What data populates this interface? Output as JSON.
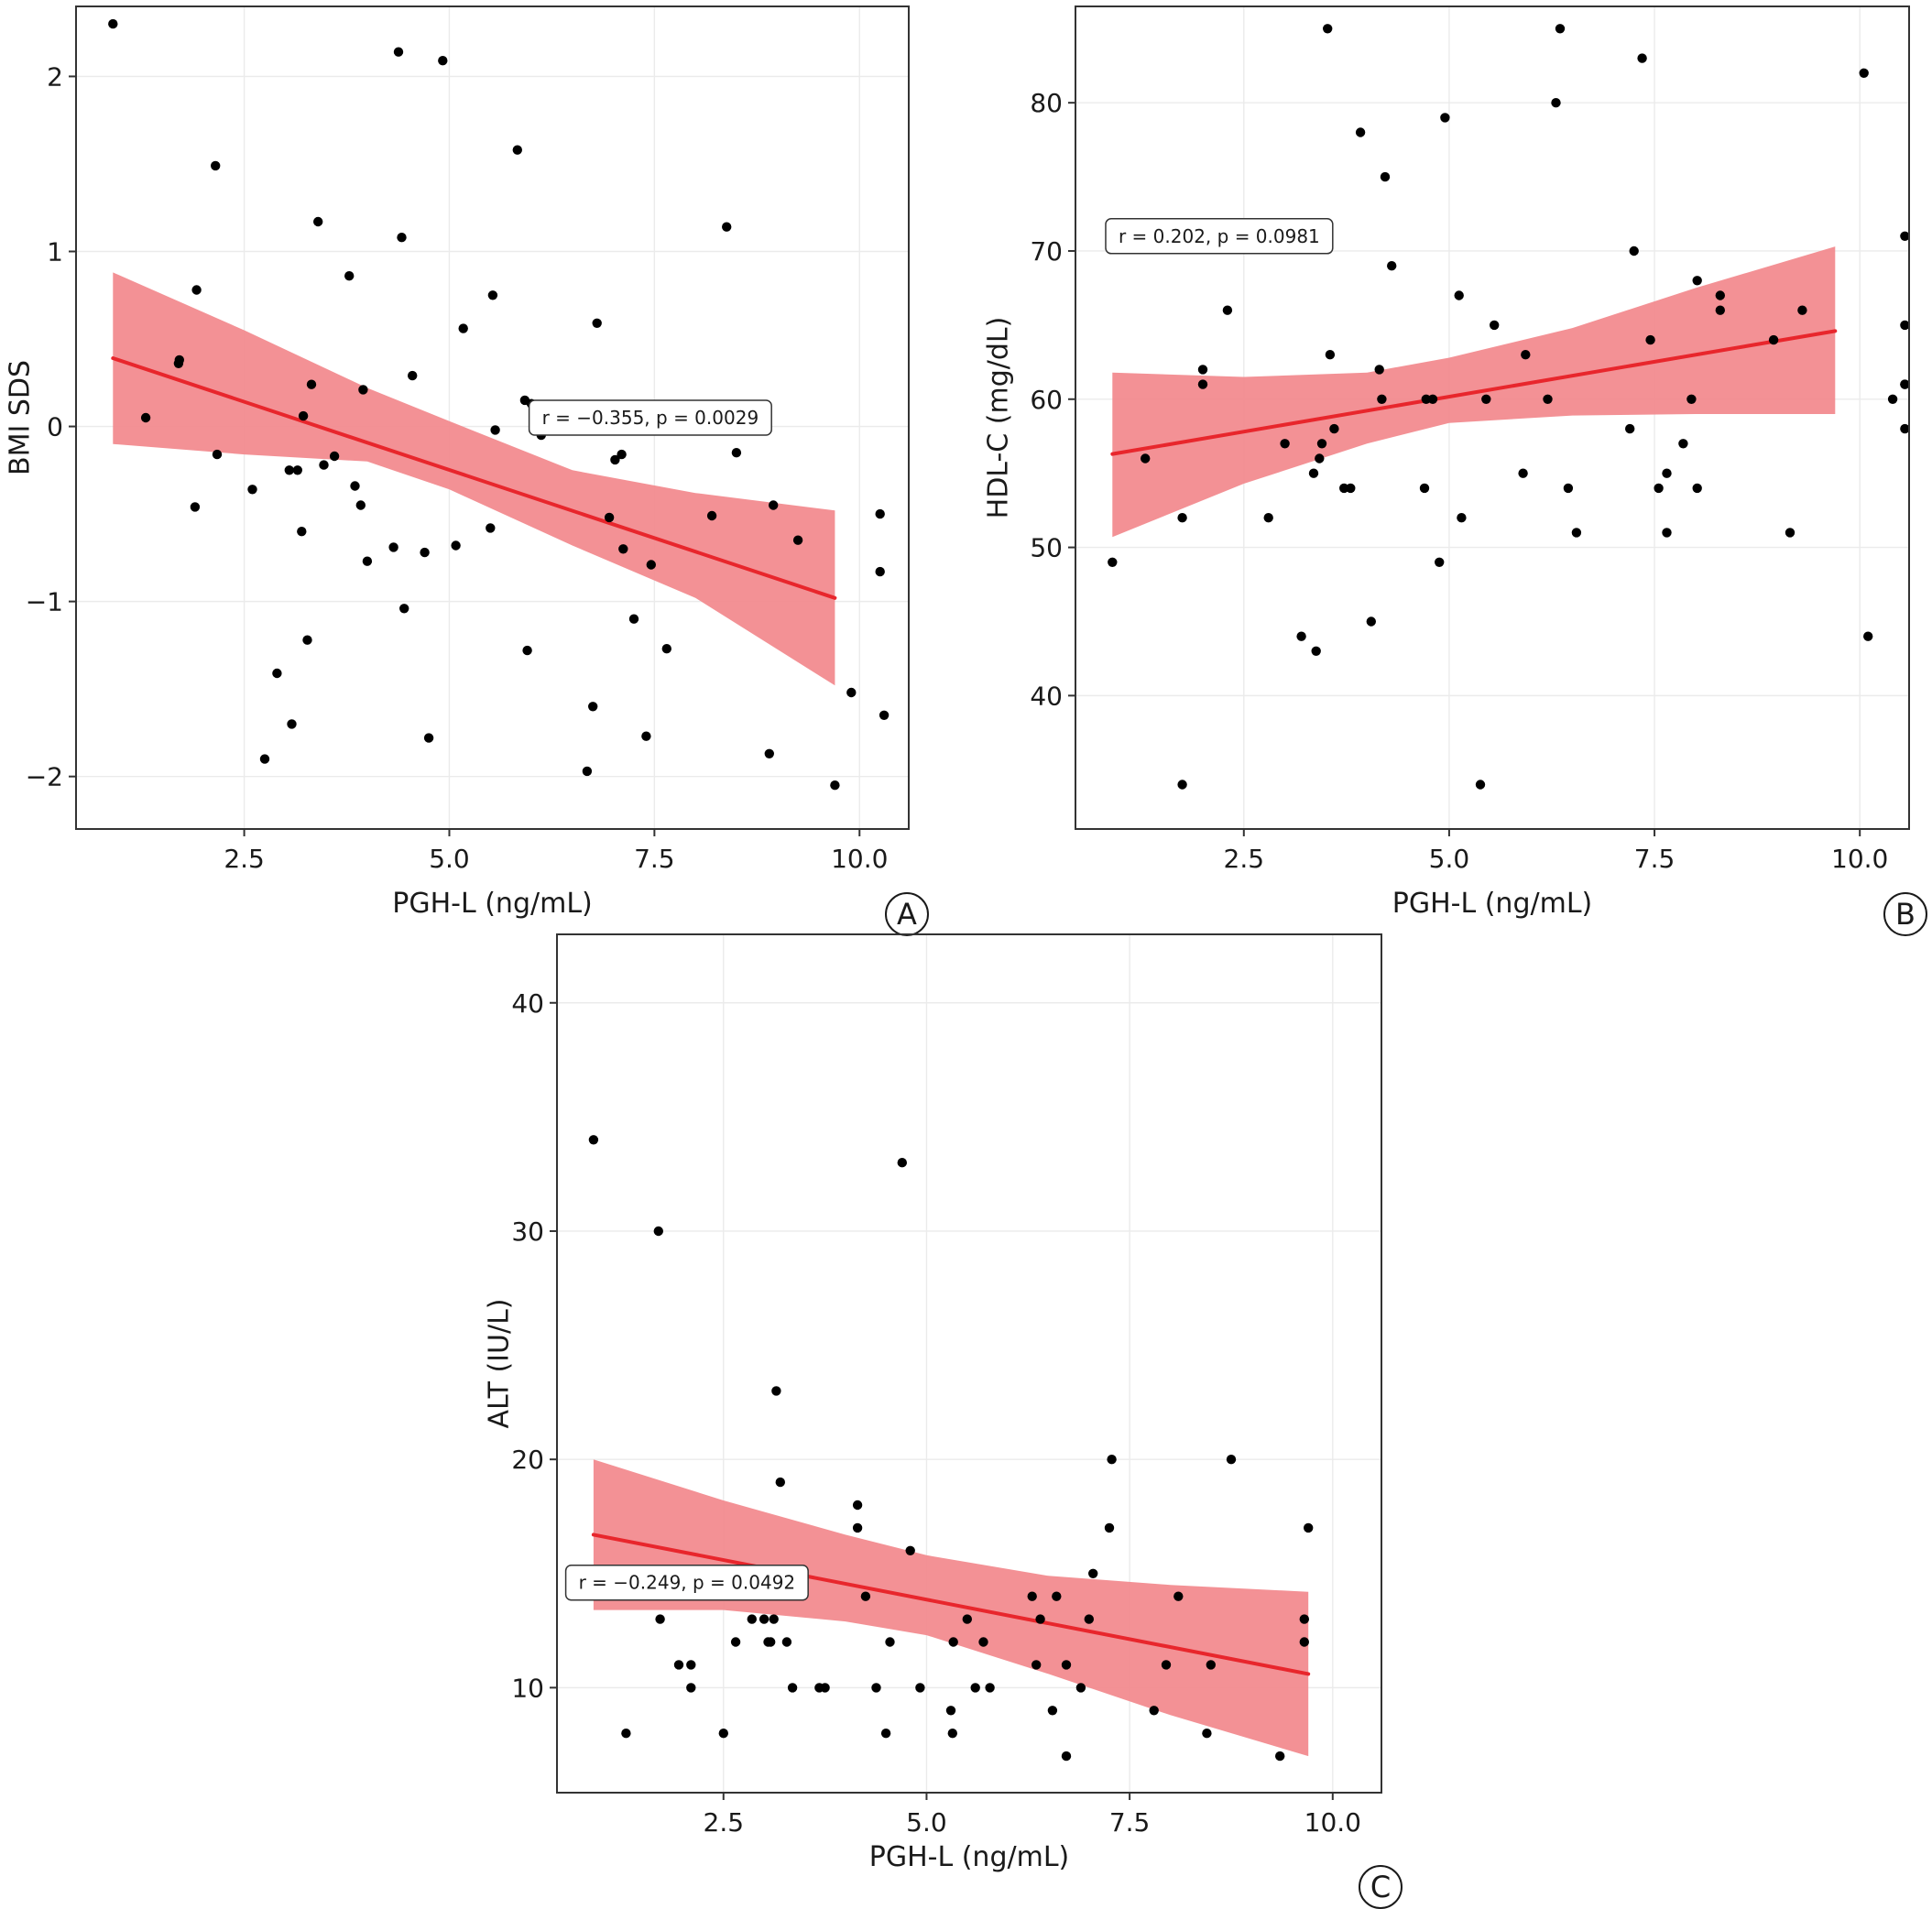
{
  "colors": {
    "band": "#f28b8f",
    "line": "#e8262c",
    "point": "#000000",
    "grid": "#ebebeb",
    "frame": "#333333",
    "text": "#1a1a1a"
  },
  "chart_data": [
    {
      "id": "A",
      "type": "scatter",
      "panel_label": "A",
      "xlabel": "PGH-L (ng/mL)",
      "ylabel": "BMI SDS",
      "xlim": [
        0.45,
        10.6
      ],
      "ylim": [
        -2.3,
        2.4
      ],
      "xticks": [
        2.5,
        5.0,
        7.5,
        10.0
      ],
      "xtick_labels": [
        "2.5",
        "5.0",
        "7.5",
        "10.0"
      ],
      "yticks": [
        -2,
        -1,
        0,
        1,
        2
      ],
      "ytick_labels": [
        "−2",
        "−1",
        "0",
        "1",
        "2"
      ],
      "grid": true,
      "annotation": {
        "text": "r = −0.355, p = 0.0029",
        "x": 7.45,
        "y": 0.05
      },
      "fit": {
        "x": [
          0.9,
          9.7
        ],
        "y": [
          0.39,
          -0.98
        ]
      },
      "ci": {
        "x": [
          0.9,
          2.5,
          4.0,
          5.0,
          6.5,
          8.0,
          9.7
        ],
        "upper": [
          0.88,
          0.55,
          0.22,
          0.03,
          -0.25,
          -0.38,
          -0.48
        ],
        "lower": [
          -0.1,
          -0.16,
          -0.2,
          -0.36,
          -0.68,
          -0.98,
          -1.48
        ]
      },
      "points": [
        [
          0.9,
          2.3
        ],
        [
          1.3,
          0.05
        ],
        [
          1.7,
          0.36
        ],
        [
          1.71,
          0.38
        ],
        [
          1.9,
          -0.46
        ],
        [
          1.92,
          0.78
        ],
        [
          2.15,
          1.49
        ],
        [
          2.17,
          -0.16
        ],
        [
          2.6,
          -0.36
        ],
        [
          2.75,
          -1.9
        ],
        [
          2.9,
          -1.41
        ],
        [
          3.05,
          -0.25
        ],
        [
          3.08,
          -1.7
        ],
        [
          3.15,
          -0.25
        ],
        [
          3.2,
          -0.6
        ],
        [
          3.22,
          0.06
        ],
        [
          3.27,
          -1.22
        ],
        [
          3.32,
          0.24
        ],
        [
          3.4,
          1.17
        ],
        [
          3.47,
          -0.22
        ],
        [
          3.6,
          -0.17
        ],
        [
          3.78,
          0.86
        ],
        [
          3.85,
          -0.34
        ],
        [
          3.92,
          -0.45
        ],
        [
          3.95,
          0.21
        ],
        [
          4.0,
          -0.77
        ],
        [
          4.32,
          -0.69
        ],
        [
          4.38,
          2.14
        ],
        [
          4.42,
          1.08
        ],
        [
          4.45,
          -1.04
        ],
        [
          4.55,
          0.29
        ],
        [
          4.7,
          -0.72
        ],
        [
          4.75,
          -1.78
        ],
        [
          4.92,
          2.09
        ],
        [
          5.08,
          -0.68
        ],
        [
          5.17,
          0.56
        ],
        [
          5.5,
          -0.58
        ],
        [
          5.53,
          0.75
        ],
        [
          5.56,
          -0.02
        ],
        [
          5.83,
          1.58
        ],
        [
          5.92,
          0.15
        ],
        [
          5.95,
          -1.28
        ],
        [
          6.0,
          0.13
        ],
        [
          6.12,
          -0.05
        ],
        [
          6.68,
          -1.97
        ],
        [
          6.75,
          -1.6
        ],
        [
          6.8,
          0.59
        ],
        [
          6.95,
          -0.52
        ],
        [
          7.02,
          -0.19
        ],
        [
          7.1,
          -0.16
        ],
        [
          7.12,
          -0.7
        ],
        [
          7.25,
          -1.1
        ],
        [
          7.4,
          -1.77
        ],
        [
          7.46,
          -0.79
        ],
        [
          7.65,
          -1.27
        ],
        [
          8.2,
          -0.51
        ],
        [
          8.38,
          1.14
        ],
        [
          8.5,
          -0.15
        ],
        [
          8.9,
          -1.87
        ],
        [
          8.95,
          -0.45
        ],
        [
          9.25,
          -0.65
        ],
        [
          9.7,
          -2.05
        ],
        [
          9.9,
          -1.52
        ],
        [
          10.25,
          -0.5
        ],
        [
          10.25,
          -0.83
        ],
        [
          10.3,
          -1.65
        ]
      ]
    },
    {
      "id": "B",
      "type": "scatter",
      "panel_label": "B",
      "xlabel": "PGH-L (ng/mL)",
      "ylabel": "HDL-C (mg/dL)",
      "xlim": [
        0.45,
        10.6
      ],
      "ylim": [
        31,
        86.5
      ],
      "xticks": [
        2.5,
        5.0,
        7.5,
        10.0
      ],
      "xtick_labels": [
        "2.5",
        "5.0",
        "7.5",
        "10.0"
      ],
      "yticks": [
        40,
        50,
        60,
        70,
        80
      ],
      "ytick_labels": [
        "40",
        "50",
        "60",
        "70",
        "80"
      ],
      "grid": true,
      "annotation": {
        "text": "r = 0.202, p = 0.0981",
        "x": 2.2,
        "y": 71.0
      },
      "fit": {
        "x": [
          0.9,
          9.7
        ],
        "y": [
          56.3,
          64.6
        ]
      },
      "ci": {
        "x": [
          0.9,
          2.5,
          4.0,
          5.0,
          6.5,
          8.0,
          9.7
        ],
        "upper": [
          61.8,
          61.5,
          61.8,
          62.8,
          64.8,
          67.5,
          70.3
        ],
        "lower": [
          50.7,
          54.3,
          57.0,
          58.4,
          58.9,
          59.0,
          59.0
        ]
      },
      "points": [
        [
          0.9,
          49
        ],
        [
          1.3,
          56
        ],
        [
          1.75,
          34
        ],
        [
          1.75,
          52
        ],
        [
          2.0,
          61
        ],
        [
          2.0,
          62
        ],
        [
          2.3,
          66
        ],
        [
          2.8,
          52
        ],
        [
          3.0,
          57
        ],
        [
          3.2,
          44
        ],
        [
          3.35,
          55
        ],
        [
          3.38,
          43
        ],
        [
          3.42,
          56
        ],
        [
          3.45,
          57
        ],
        [
          3.52,
          85
        ],
        [
          3.55,
          63
        ],
        [
          3.6,
          58
        ],
        [
          3.72,
          54
        ],
        [
          3.8,
          54
        ],
        [
          3.92,
          78
        ],
        [
          4.05,
          45
        ],
        [
          4.15,
          62
        ],
        [
          4.18,
          60
        ],
        [
          4.22,
          75
        ],
        [
          4.3,
          69
        ],
        [
          4.7,
          54
        ],
        [
          4.72,
          60
        ],
        [
          4.8,
          60
        ],
        [
          4.88,
          49
        ],
        [
          4.95,
          79
        ],
        [
          5.12,
          67
        ],
        [
          5.15,
          52
        ],
        [
          5.38,
          34
        ],
        [
          5.45,
          60
        ],
        [
          5.55,
          65
        ],
        [
          5.9,
          55
        ],
        [
          5.93,
          63
        ],
        [
          6.2,
          60
        ],
        [
          6.3,
          80
        ],
        [
          6.35,
          85
        ],
        [
          6.45,
          54
        ],
        [
          6.55,
          51
        ],
        [
          7.2,
          58
        ],
        [
          7.25,
          70
        ],
        [
          7.35,
          83
        ],
        [
          7.45,
          64
        ],
        [
          7.55,
          54
        ],
        [
          7.65,
          51
        ],
        [
          7.65,
          55
        ],
        [
          7.85,
          57
        ],
        [
          7.95,
          60
        ],
        [
          8.02,
          54
        ],
        [
          8.02,
          68
        ],
        [
          8.3,
          66
        ],
        [
          8.3,
          67
        ],
        [
          8.95,
          64
        ],
        [
          9.15,
          51
        ],
        [
          9.3,
          66
        ],
        [
          10.05,
          82
        ],
        [
          10.1,
          44
        ],
        [
          10.4,
          60
        ],
        [
          10.9,
          61
        ],
        [
          11.15,
          61
        ],
        [
          11.5,
          58
        ],
        [
          11.5,
          65
        ],
        [
          11.55,
          71
        ]
      ]
    },
    {
      "id": "C",
      "type": "scatter",
      "panel_label": "C",
      "xlabel": "PGH-L (ng/mL)",
      "ylabel": "ALT (IU/L)",
      "xlim": [
        0.45,
        10.6
      ],
      "ylim": [
        5.4,
        43
      ],
      "xticks": [
        2.5,
        5.0,
        7.5,
        10.0
      ],
      "xtick_labels": [
        "2.5",
        "5.0",
        "7.5",
        "10.0"
      ],
      "yticks": [
        10,
        20,
        30,
        40
      ],
      "ytick_labels": [
        "10",
        "20",
        "30",
        "40"
      ],
      "grid": true,
      "annotation": {
        "text": "r = −0.249, p = 0.0492",
        "x": 2.05,
        "y": 14.6
      },
      "fit": {
        "x": [
          0.9,
          9.7
        ],
        "y": [
          16.7,
          10.6
        ]
      },
      "ci": {
        "x": [
          0.9,
          2.5,
          4.0,
          5.0,
          6.5,
          8.0,
          9.7
        ],
        "upper": [
          20.0,
          18.2,
          16.7,
          15.8,
          14.9,
          14.5,
          14.2
        ],
        "lower": [
          13.4,
          13.4,
          12.9,
          12.3,
          10.6,
          8.8,
          7.0
        ]
      },
      "points": [
        [
          0.9,
          34
        ],
        [
          1.3,
          8
        ],
        [
          1.7,
          30
        ],
        [
          1.72,
          13
        ],
        [
          1.95,
          11
        ],
        [
          2.1,
          10
        ],
        [
          2.1,
          11
        ],
        [
          2.5,
          8
        ],
        [
          2.65,
          12
        ],
        [
          2.85,
          13
        ],
        [
          3.0,
          13
        ],
        [
          3.05,
          12
        ],
        [
          3.08,
          12
        ],
        [
          3.12,
          13
        ],
        [
          3.15,
          23
        ],
        [
          3.2,
          19
        ],
        [
          3.28,
          12
        ],
        [
          3.35,
          10
        ],
        [
          3.68,
          10
        ],
        [
          3.75,
          10
        ],
        [
          4.15,
          17
        ],
        [
          4.15,
          18
        ],
        [
          4.25,
          14
        ],
        [
          4.38,
          10
        ],
        [
          4.5,
          8
        ],
        [
          4.55,
          12
        ],
        [
          4.7,
          33
        ],
        [
          4.8,
          16
        ],
        [
          4.92,
          10
        ],
        [
          5.3,
          9
        ],
        [
          5.32,
          8
        ],
        [
          5.33,
          12
        ],
        [
          5.5,
          13
        ],
        [
          5.6,
          10
        ],
        [
          5.7,
          12
        ],
        [
          5.78,
          10
        ],
        [
          6.3,
          14
        ],
        [
          6.35,
          11
        ],
        [
          6.4,
          13
        ],
        [
          6.55,
          9
        ],
        [
          6.6,
          14
        ],
        [
          6.72,
          7
        ],
        [
          6.72,
          11
        ],
        [
          6.9,
          10
        ],
        [
          7.0,
          13
        ],
        [
          7.05,
          15
        ],
        [
          7.25,
          17
        ],
        [
          7.28,
          20
        ],
        [
          7.8,
          9
        ],
        [
          7.95,
          11
        ],
        [
          8.1,
          14
        ],
        [
          8.45,
          8
        ],
        [
          8.5,
          11
        ],
        [
          8.75,
          20
        ],
        [
          9.35,
          7
        ],
        [
          9.65,
          12
        ],
        [
          9.65,
          13
        ],
        [
          9.7,
          17
        ]
      ]
    }
  ]
}
